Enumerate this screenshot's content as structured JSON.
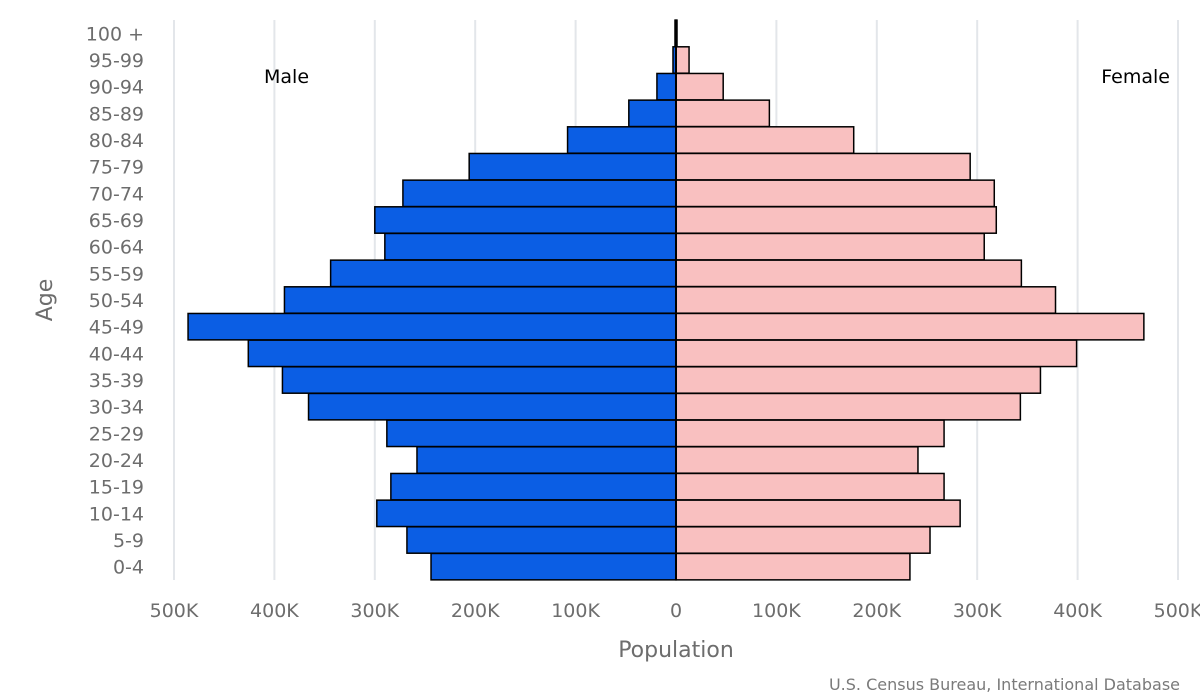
{
  "chart_data": {
    "type": "bar",
    "orientation": "horizontal",
    "layout": "population-pyramid",
    "categories": [
      "100 +",
      "95-99",
      "90-94",
      "85-89",
      "80-84",
      "75-79",
      "70-74",
      "65-69",
      "60-64",
      "55-59",
      "50-54",
      "45-49",
      "40-44",
      "35-39",
      "30-34",
      "25-29",
      "20-24",
      "15-19",
      "10-14",
      "5-9",
      "0-4"
    ],
    "series": [
      {
        "name": "Male",
        "color": "#0b5ee4",
        "side": "left",
        "values": [
          1000,
          3000,
          19000,
          47000,
          108000,
          206000,
          272000,
          300000,
          290000,
          344000,
          390000,
          486000,
          426000,
          392000,
          366000,
          288000,
          258000,
          284000,
          298000,
          268000,
          244000
        ]
      },
      {
        "name": "Female",
        "color": "#f9c0c0",
        "side": "right",
        "values": [
          1000,
          13000,
          47000,
          93000,
          177000,
          293000,
          317000,
          319000,
          307000,
          344000,
          378000,
          466000,
          399000,
          363000,
          343000,
          267000,
          241000,
          267000,
          283000,
          253000,
          233000
        ]
      }
    ],
    "xlabel": "Population",
    "ylabel": "Age",
    "xlim": [
      -500000,
      500000
    ],
    "xticks": [
      {
        "value": -500000,
        "label": "500K"
      },
      {
        "value": -400000,
        "label": "400K"
      },
      {
        "value": -300000,
        "label": "300K"
      },
      {
        "value": -200000,
        "label": "200K"
      },
      {
        "value": -100000,
        "label": "100K"
      },
      {
        "value": 0,
        "label": "0"
      },
      {
        "value": 100000,
        "label": "100K"
      },
      {
        "value": 200000,
        "label": "200K"
      },
      {
        "value": 300000,
        "label": "300K"
      },
      {
        "value": 400000,
        "label": "400K"
      },
      {
        "value": 500000,
        "label": "500K"
      }
    ],
    "grid": true,
    "bar_border_color": "#000000",
    "grid_color": "#e3e6ea",
    "source": "U.S. Census Bureau, International Database"
  }
}
